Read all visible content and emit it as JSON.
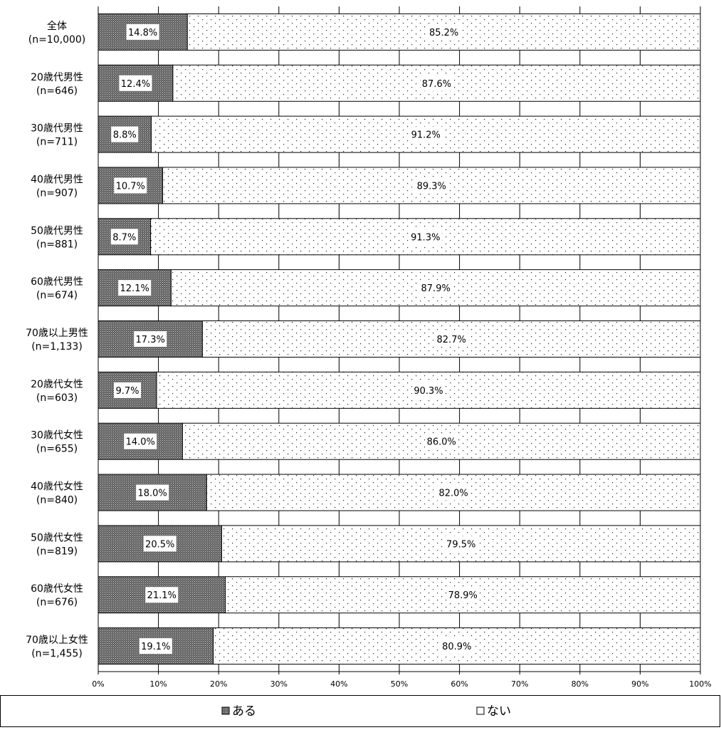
{
  "chart_data": {
    "type": "bar",
    "orientation": "horizontal",
    "stacked": true,
    "percent_stacked": true,
    "title": "",
    "xlabel": "",
    "ylabel": "",
    "xlim": [
      0,
      100
    ],
    "x_ticks": [
      "0%",
      "10%",
      "20%",
      "30%",
      "40%",
      "50%",
      "60%",
      "70%",
      "80%",
      "90%",
      "100%"
    ],
    "grid": true,
    "legend_position": "bottom",
    "categories": [
      {
        "name": "全体",
        "n": "(n=10,000)"
      },
      {
        "name": "20歳代男性",
        "n": "(n=646)"
      },
      {
        "name": "30歳代男性",
        "n": "(n=711)"
      },
      {
        "name": "40歳代男性",
        "n": "(n=907)"
      },
      {
        "name": "50歳代男性",
        "n": "(n=881)"
      },
      {
        "name": "60歳代男性",
        "n": "(n=674)"
      },
      {
        "name": "70歳以上男性",
        "n": "(n=1,133)"
      },
      {
        "name": "20歳代女性",
        "n": "(n=603)"
      },
      {
        "name": "30歳代女性",
        "n": "(n=655)"
      },
      {
        "name": "40歳代女性",
        "n": "(n=840)"
      },
      {
        "name": "50歳代女性",
        "n": "(n=819)"
      },
      {
        "name": "60歳代女性",
        "n": "(n=676)"
      },
      {
        "name": "70歳以上女性",
        "n": "(n=1,455)"
      }
    ],
    "series": [
      {
        "name": "ある",
        "color": "#555555",
        "pattern": "dense-crosshatch",
        "values": [
          14.8,
          12.4,
          8.8,
          10.7,
          8.7,
          12.1,
          17.3,
          9.7,
          14.0,
          18.0,
          20.5,
          21.1,
          19.1
        ],
        "labels": [
          "14.8%",
          "12.4%",
          "8.8%",
          "10.7%",
          "8.7%",
          "12.1%",
          "17.3%",
          "9.7%",
          "14.0%",
          "18.0%",
          "20.5%",
          "21.1%",
          "19.1%"
        ]
      },
      {
        "name": "ない",
        "color": "#ffffff",
        "pattern": "sparse-dots",
        "values": [
          85.2,
          87.6,
          91.2,
          89.3,
          91.3,
          87.9,
          82.7,
          90.3,
          86.0,
          82.0,
          79.5,
          78.9,
          80.9
        ],
        "labels": [
          "85.2%",
          "87.6%",
          "91.2%",
          "89.3%",
          "91.3%",
          "87.9%",
          "82.7%",
          "90.3%",
          "86.0%",
          "82.0%",
          "79.5%",
          "78.9%",
          "80.9%"
        ]
      }
    ]
  }
}
